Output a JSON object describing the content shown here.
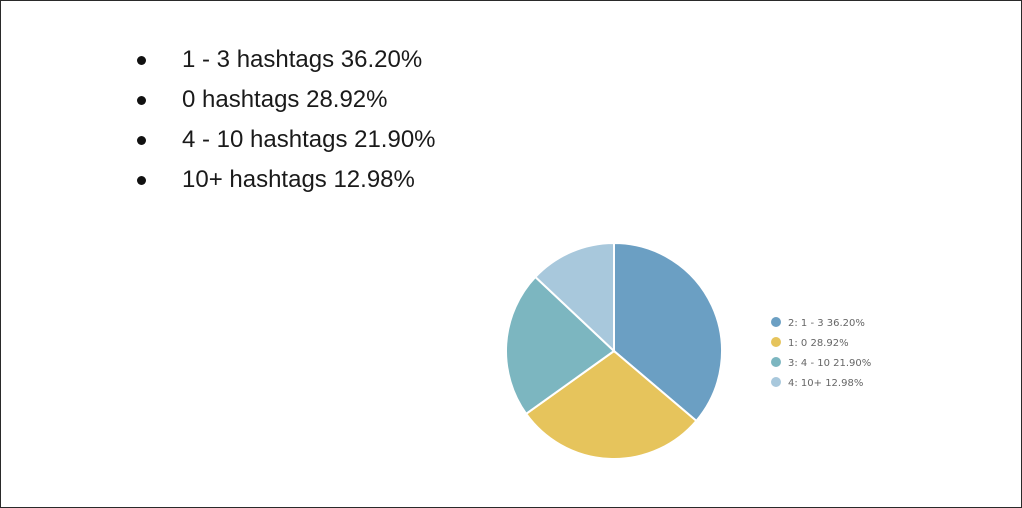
{
  "bullets": [
    "1 - 3 hashtags 36.20%",
    "0 hashtags 28.92%",
    "4 - 10 hashtags 21.90%",
    "10+ hashtags 12.98%"
  ],
  "chart_data": {
    "type": "pie",
    "slices": [
      {
        "label": "2: 1 - 3 36.20%",
        "value": 36.2,
        "color": "#6b9fc3"
      },
      {
        "label": "1: 0 28.92%",
        "value": 28.92,
        "color": "#e6c45c"
      },
      {
        "label": "3: 4 - 10 21.90%",
        "value": 21.9,
        "color": "#7cb6c0"
      },
      {
        "label": "4: 10+ 12.98%",
        "value": 12.98,
        "color": "#a8c8dc"
      }
    ],
    "start_direction": "top, clockwise",
    "legend_position": "right"
  }
}
